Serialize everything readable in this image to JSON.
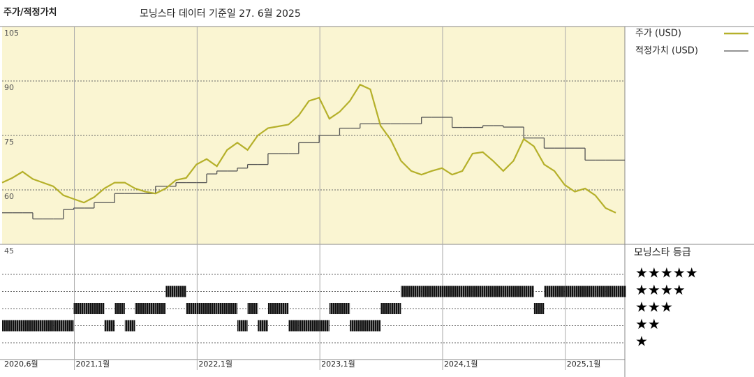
{
  "chart_data": {
    "type": "line",
    "title": "주가/적정가치",
    "subtitle": "모닝스타 데이터 기준일 27. 6월 2025",
    "x": [
      "2020.6",
      "2020.7",
      "2020.8",
      "2020.9",
      "2020.10",
      "2020.11",
      "2020.12",
      "2021.1",
      "2021.2",
      "2021.3",
      "2021.4",
      "2021.5",
      "2021.6",
      "2021.7",
      "2021.8",
      "2021.9",
      "2021.10",
      "2021.11",
      "2021.12",
      "2022.1",
      "2022.2",
      "2022.3",
      "2022.4",
      "2022.5",
      "2022.6",
      "2022.7",
      "2022.8",
      "2022.9",
      "2022.10",
      "2022.11",
      "2022.12",
      "2023.1",
      "2023.2",
      "2023.3",
      "2023.4",
      "2023.5",
      "2023.6",
      "2023.7",
      "2023.8",
      "2023.9",
      "2023.10",
      "2023.11",
      "2023.12",
      "2024.1",
      "2024.2",
      "2024.3",
      "2024.4",
      "2024.5",
      "2024.6",
      "2024.7",
      "2024.8",
      "2024.9",
      "2024.10",
      "2024.11",
      "2024.12",
      "2025.1",
      "2025.2",
      "2025.3",
      "2025.4",
      "2025.5",
      "2025.6"
    ],
    "series": [
      {
        "name": "주가 (USD)",
        "color": "#b5b02a",
        "values": [
          62,
          63.3,
          65,
          63,
          62,
          61,
          58.5,
          57.5,
          56.5,
          58,
          60.4,
          62,
          62,
          60.4,
          59.5,
          59,
          60.4,
          62.7,
          63.3,
          67,
          68.5,
          66.5,
          71,
          73,
          71,
          75,
          77,
          77.5,
          78,
          80.5,
          84.5,
          85.4,
          79.6,
          81.5,
          84.5,
          89,
          87.7,
          77.7,
          73.8,
          68,
          65.2,
          64.2,
          65.2,
          66,
          64.2,
          65.2,
          70,
          70.4,
          68,
          65.2,
          68,
          74,
          72,
          67,
          65.2,
          61.4,
          59.5,
          60.4,
          58.5,
          55,
          53.7
        ]
      },
      {
        "name": "적정가치 (USD)",
        "color": "#555555",
        "values": [
          53.7,
          53.7,
          53.7,
          52,
          52,
          52,
          54.6,
          55,
          55,
          56.5,
          56.5,
          59,
          59,
          59,
          59,
          61,
          61,
          62,
          62,
          62,
          64.4,
          65.2,
          65.2,
          66,
          67,
          67,
          70,
          70,
          70,
          73,
          73,
          75,
          75,
          77,
          77,
          78.2,
          78.2,
          78.2,
          78.2,
          78.2,
          78.2,
          80,
          80,
          80,
          77.2,
          77.2,
          77.2,
          77.7,
          77.7,
          77.3,
          77.3,
          74.3,
          74.3,
          71.5,
          71.5,
          71.5,
          71.5,
          68.2,
          68.2,
          68.2,
          68.2
        ]
      }
    ],
    "ylim": [
      45,
      105
    ],
    "yticks": [
      45,
      60,
      75,
      90,
      105
    ],
    "xticks": [
      {
        "value": "2020.6",
        "label": "2020,6월"
      },
      {
        "value": "2021.1",
        "label": "2021,1월"
      },
      {
        "value": "2022.1",
        "label": "2022,1월"
      },
      {
        "value": "2023.1",
        "label": "2023,1월"
      },
      {
        "value": "2024.1",
        "label": "2024,1월"
      },
      {
        "value": "2025.1",
        "label": "2025,1월"
      }
    ],
    "rating_title": "모닝스타 등급",
    "rating_labels": [
      "★★★★★",
      "★★★★",
      "★★★",
      "★★",
      "★"
    ],
    "ratings": [
      2,
      2,
      2,
      2,
      2,
      2,
      2,
      3,
      3,
      3,
      2,
      3,
      2,
      3,
      3,
      3,
      4,
      4,
      3,
      3,
      3,
      3,
      3,
      2,
      3,
      2,
      3,
      3,
      2,
      2,
      2,
      2,
      3,
      3,
      2,
      2,
      2,
      3,
      3,
      4,
      4,
      4,
      4,
      4,
      4,
      4,
      4,
      4,
      4,
      4,
      4,
      4,
      3,
      4,
      4,
      4,
      4,
      4,
      4,
      4,
      4
    ]
  }
}
